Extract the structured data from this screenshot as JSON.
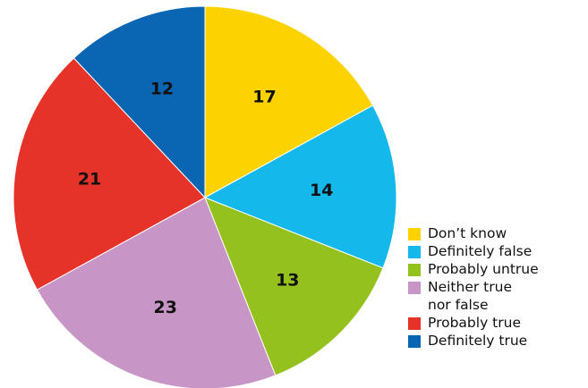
{
  "chart_data": {
    "type": "pie",
    "title": "",
    "slices": [
      {
        "label": "Don’t know",
        "value": 17,
        "color": "#FCD200"
      },
      {
        "label": "Definitely false",
        "value": 14,
        "color": "#14B8EA"
      },
      {
        "label": "Probably untrue",
        "value": 13,
        "color": "#95C11F"
      },
      {
        "label": "Neither true nor false",
        "value": 23,
        "color": "#C796C7"
      },
      {
        "label": "Probably true",
        "value": 21,
        "color": "#E63329"
      },
      {
        "label": "Definitely true",
        "value": 12,
        "color": "#0A65B2"
      }
    ],
    "start_angle": "12 o'clock",
    "direction": "clockwise",
    "legend_position": "bottom-right"
  },
  "legend": {
    "items": [
      {
        "label": "Don’t know",
        "color": "#FCD200"
      },
      {
        "label": "Definitely false",
        "color": "#14B8EA"
      },
      {
        "label": "Probably untrue",
        "color": "#95C11F"
      },
      {
        "label": "Neither true nor false",
        "color": "#C796C7"
      },
      {
        "label": "Probably true",
        "color": "#E63329"
      },
      {
        "label": "Definitely true",
        "color": "#0A65B2"
      }
    ]
  }
}
